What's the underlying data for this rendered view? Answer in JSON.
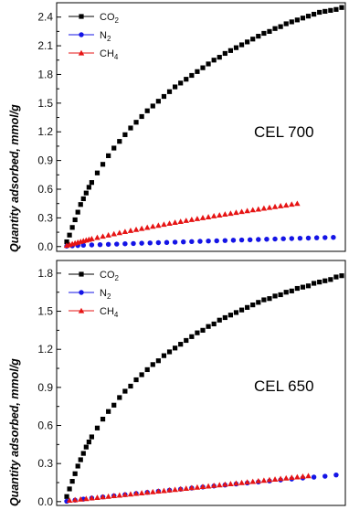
{
  "ylabel": "Quantity adsorbed, mmol/g",
  "legend": [
    {
      "key": "co2",
      "label": "CO",
      "sub": "2",
      "color": "#000000",
      "marker": "square"
    },
    {
      "key": "n2",
      "label": "N",
      "sub": "2",
      "color": "#1414e6",
      "marker": "circle"
    },
    {
      "key": "ch4",
      "label": "CH",
      "sub": "4",
      "color": "#e61414",
      "marker": "triangle"
    }
  ],
  "chart_data": [
    {
      "type": "scatter",
      "panel_label": "CEL 700",
      "ylim": [
        -0.05,
        2.55
      ],
      "yticks": [
        "0.0",
        "0.3",
        "0.6",
        "0.9",
        "1.2",
        "1.5",
        "1.8",
        "2.1",
        "2.4"
      ],
      "yticks_values": [
        0.0,
        0.3,
        0.6,
        0.9,
        1.2,
        1.5,
        1.8,
        2.1,
        2.4
      ],
      "xlim": [
        0,
        1
      ],
      "series": [
        {
          "name": "CO2",
          "color": "#000000",
          "marker": "square",
          "x": [
            0.01,
            0.02,
            0.03,
            0.04,
            0.05,
            0.06,
            0.07,
            0.08,
            0.09,
            0.1,
            0.12,
            0.14,
            0.16,
            0.18,
            0.2,
            0.22,
            0.24,
            0.26,
            0.28,
            0.3,
            0.32,
            0.34,
            0.36,
            0.38,
            0.4,
            0.42,
            0.44,
            0.46,
            0.48,
            0.5,
            0.52,
            0.54,
            0.56,
            0.58,
            0.6,
            0.62,
            0.64,
            0.66,
            0.68,
            0.7,
            0.72,
            0.74,
            0.76,
            0.78,
            0.8,
            0.82,
            0.84,
            0.86,
            0.88,
            0.9,
            0.92,
            0.94,
            0.96,
            0.98,
            1.0
          ],
          "y": [
            0.05,
            0.12,
            0.2,
            0.28,
            0.36,
            0.44,
            0.5,
            0.56,
            0.62,
            0.67,
            0.77,
            0.86,
            0.95,
            1.03,
            1.1,
            1.17,
            1.24,
            1.3,
            1.36,
            1.42,
            1.47,
            1.52,
            1.57,
            1.62,
            1.67,
            1.71,
            1.75,
            1.79,
            1.83,
            1.87,
            1.91,
            1.95,
            1.98,
            2.02,
            2.05,
            2.08,
            2.11,
            2.14,
            2.17,
            2.2,
            2.23,
            2.25,
            2.28,
            2.3,
            2.33,
            2.35,
            2.37,
            2.39,
            2.41,
            2.43,
            2.45,
            2.46,
            2.47,
            2.48,
            2.5
          ]
        },
        {
          "name": "N2",
          "color": "#1414e6",
          "marker": "circle",
          "x": [
            0.01,
            0.03,
            0.05,
            0.07,
            0.1,
            0.13,
            0.16,
            0.19,
            0.22,
            0.25,
            0.28,
            0.31,
            0.34,
            0.37,
            0.4,
            0.43,
            0.46,
            0.49,
            0.52,
            0.55,
            0.58,
            0.61,
            0.64,
            0.67,
            0.7,
            0.73,
            0.76,
            0.79,
            0.82,
            0.85,
            0.88,
            0.91,
            0.94,
            0.97
          ],
          "y": [
            0.005,
            0.008,
            0.011,
            0.014,
            0.017,
            0.02,
            0.023,
            0.026,
            0.029,
            0.032,
            0.035,
            0.038,
            0.041,
            0.043,
            0.046,
            0.049,
            0.052,
            0.055,
            0.058,
            0.06,
            0.063,
            0.066,
            0.069,
            0.071,
            0.074,
            0.077,
            0.079,
            0.082,
            0.084,
            0.087,
            0.089,
            0.092,
            0.094,
            0.096
          ]
        },
        {
          "name": "CH4",
          "color": "#e61414",
          "marker": "triangle",
          "x": [
            0.01,
            0.02,
            0.03,
            0.04,
            0.05,
            0.06,
            0.07,
            0.08,
            0.09,
            0.1,
            0.12,
            0.14,
            0.16,
            0.18,
            0.2,
            0.22,
            0.24,
            0.26,
            0.28,
            0.3,
            0.32,
            0.34,
            0.36,
            0.38,
            0.4,
            0.42,
            0.44,
            0.46,
            0.48,
            0.5,
            0.52,
            0.54,
            0.56,
            0.58,
            0.6,
            0.62,
            0.64,
            0.66,
            0.68,
            0.7,
            0.72,
            0.74,
            0.76,
            0.78,
            0.8,
            0.82,
            0.84
          ],
          "y": [
            0.012,
            0.02,
            0.028,
            0.036,
            0.044,
            0.052,
            0.06,
            0.067,
            0.074,
            0.081,
            0.094,
            0.107,
            0.12,
            0.132,
            0.144,
            0.156,
            0.167,
            0.178,
            0.189,
            0.2,
            0.211,
            0.221,
            0.232,
            0.242,
            0.252,
            0.262,
            0.272,
            0.282,
            0.291,
            0.301,
            0.31,
            0.32,
            0.329,
            0.338,
            0.347,
            0.356,
            0.365,
            0.374,
            0.383,
            0.391,
            0.4,
            0.408,
            0.417,
            0.425,
            0.433,
            0.442,
            0.45
          ]
        }
      ]
    },
    {
      "type": "scatter",
      "panel_label": "CEL 650",
      "ylim": [
        -0.03,
        1.9
      ],
      "yticks": [
        "0.0",
        "0.3",
        "0.6",
        "0.9",
        "1.2",
        "1.5",
        "1.8"
      ],
      "yticks_values": [
        0.0,
        0.3,
        0.6,
        0.9,
        1.2,
        1.5,
        1.8
      ],
      "xlim": [
        0,
        1
      ],
      "series": [
        {
          "name": "CO2",
          "color": "#000000",
          "marker": "square",
          "x": [
            0.01,
            0.02,
            0.03,
            0.04,
            0.05,
            0.06,
            0.07,
            0.08,
            0.09,
            0.1,
            0.12,
            0.14,
            0.16,
            0.18,
            0.2,
            0.22,
            0.24,
            0.26,
            0.28,
            0.3,
            0.32,
            0.34,
            0.36,
            0.38,
            0.4,
            0.42,
            0.44,
            0.46,
            0.48,
            0.5,
            0.52,
            0.54,
            0.56,
            0.58,
            0.6,
            0.62,
            0.64,
            0.66,
            0.68,
            0.7,
            0.72,
            0.74,
            0.76,
            0.78,
            0.8,
            0.82,
            0.84,
            0.86,
            0.88,
            0.9,
            0.92,
            0.94,
            0.96,
            0.98,
            1.0
          ],
          "y": [
            0.04,
            0.1,
            0.16,
            0.22,
            0.28,
            0.33,
            0.38,
            0.43,
            0.47,
            0.51,
            0.58,
            0.65,
            0.71,
            0.76,
            0.82,
            0.87,
            0.91,
            0.96,
            1.0,
            1.04,
            1.08,
            1.11,
            1.15,
            1.18,
            1.21,
            1.24,
            1.27,
            1.3,
            1.33,
            1.35,
            1.38,
            1.4,
            1.43,
            1.45,
            1.47,
            1.49,
            1.51,
            1.53,
            1.55,
            1.57,
            1.59,
            1.6,
            1.62,
            1.63,
            1.65,
            1.66,
            1.68,
            1.69,
            1.7,
            1.72,
            1.73,
            1.74,
            1.75,
            1.77,
            1.78
          ]
        },
        {
          "name": "N2",
          "color": "#1414e6",
          "marker": "circle",
          "x": [
            0.01,
            0.04,
            0.07,
            0.1,
            0.14,
            0.18,
            0.22,
            0.26,
            0.3,
            0.34,
            0.38,
            0.42,
            0.46,
            0.5,
            0.54,
            0.58,
            0.62,
            0.66,
            0.7,
            0.74,
            0.78,
            0.82,
            0.86,
            0.9,
            0.94,
            0.98
          ],
          "y": [
            0.003,
            0.012,
            0.02,
            0.028,
            0.037,
            0.046,
            0.055,
            0.064,
            0.073,
            0.082,
            0.09,
            0.098,
            0.107,
            0.115,
            0.123,
            0.131,
            0.139,
            0.147,
            0.155,
            0.163,
            0.171,
            0.178,
            0.186,
            0.193,
            0.2,
            0.21
          ]
        },
        {
          "name": "CH4",
          "color": "#e61414",
          "marker": "triangle",
          "x": [
            0.02,
            0.04,
            0.06,
            0.08,
            0.1,
            0.12,
            0.14,
            0.16,
            0.18,
            0.2,
            0.22,
            0.24,
            0.26,
            0.28,
            0.3,
            0.32,
            0.34,
            0.36,
            0.38,
            0.4,
            0.42,
            0.44,
            0.46,
            0.48,
            0.5,
            0.52,
            0.54,
            0.56,
            0.58,
            0.6,
            0.62,
            0.64,
            0.66,
            0.68,
            0.7,
            0.72,
            0.74,
            0.76,
            0.78,
            0.8,
            0.82,
            0.84,
            0.86,
            0.88
          ],
          "y": [
            0.01,
            0.014,
            0.019,
            0.023,
            0.028,
            0.032,
            0.037,
            0.041,
            0.046,
            0.05,
            0.055,
            0.059,
            0.064,
            0.068,
            0.073,
            0.077,
            0.082,
            0.086,
            0.091,
            0.095,
            0.1,
            0.104,
            0.109,
            0.113,
            0.118,
            0.122,
            0.127,
            0.131,
            0.136,
            0.14,
            0.145,
            0.149,
            0.154,
            0.158,
            0.163,
            0.167,
            0.172,
            0.176,
            0.181,
            0.185,
            0.19,
            0.194,
            0.199,
            0.203
          ]
        }
      ]
    }
  ]
}
